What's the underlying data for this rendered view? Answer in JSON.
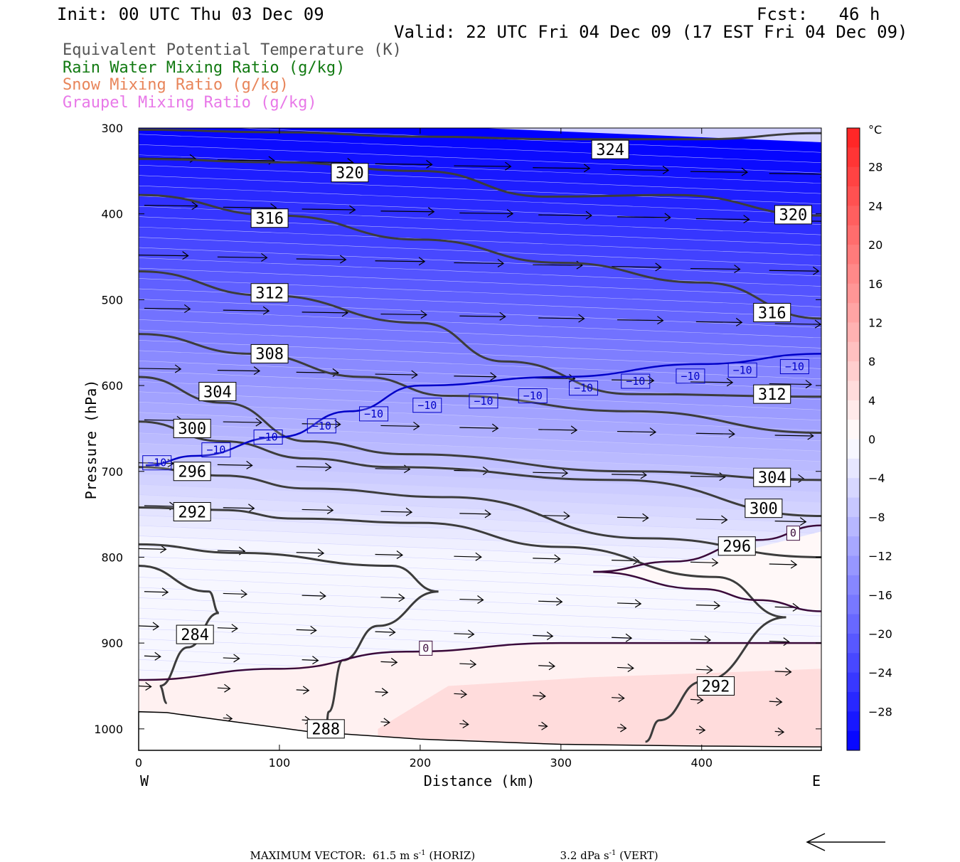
{
  "header": {
    "init": "Init: 00 UTC Thu 03 Dec 09",
    "fcst": "Fcst:   46 h",
    "valid": "Valid: 22 UTC Fri 04 Dec 09 (17 EST Fri 04 Dec 09)"
  },
  "legend": [
    {
      "label": "Equivalent Potential Temperature (K)",
      "color": "#555555"
    },
    {
      "label": "Rain Water Mixing Ratio (g/kg)",
      "color": "#127a12"
    },
    {
      "label": "Snow Mixing Ratio (g/kg)",
      "color": "#e8855a"
    },
    {
      "label": "Graupel Mixing Ratio (g/kg)",
      "color": "#e878e8"
    }
  ],
  "chart_data": {
    "type": "cross-section contour",
    "xlabel": "Distance (km)",
    "ylabel": "Pressure (hPa)",
    "x_ticks": [
      0,
      100,
      200,
      300,
      400
    ],
    "xlim": [
      0,
      485
    ],
    "y_ticks": [
      300,
      400,
      500,
      600,
      700,
      800,
      900,
      1000
    ],
    "ylim": [
      300,
      1025
    ],
    "x_end_labels": {
      "left": "W",
      "right": "E"
    },
    "colorbar": {
      "unit": "°C",
      "ticks": [
        28,
        24,
        20,
        16,
        12,
        8,
        4,
        0,
        -4,
        -8,
        -12,
        -16,
        -20,
        -24,
        -28
      ],
      "range": [
        -32,
        32
      ],
      "low_color": "#0000ff",
      "mid_color": "#ffffff",
      "high_color": "#ff2020"
    },
    "theta_e_contours": [
      {
        "value": 324,
        "label": "324",
        "points": [
          [
            0,
            302
          ],
          [
            100,
            305
          ],
          [
            200,
            310
          ],
          [
            300,
            313
          ],
          [
            400,
            313
          ],
          [
            485,
            306
          ]
        ],
        "label_at": [
          335,
          325
        ]
      },
      {
        "value": 320,
        "label": "320",
        "points": [
          [
            0,
            336
          ],
          [
            100,
            340
          ],
          [
            200,
            350
          ],
          [
            290,
            380
          ],
          [
            380,
            378
          ],
          [
            485,
            402
          ]
        ],
        "label_at": [
          150,
          352
        ],
        "label2_at": [
          465,
          401
        ]
      },
      {
        "value": 316,
        "label": "316",
        "points": [
          [
            0,
            378
          ],
          [
            100,
            402
          ],
          [
            200,
            430
          ],
          [
            300,
            457
          ],
          [
            400,
            480
          ],
          [
            485,
            522
          ]
        ],
        "label_at": [
          93,
          405
        ],
        "label2_at": [
          450,
          515
        ]
      },
      {
        "value": 312,
        "label": "312",
        "points": [
          [
            0,
            467
          ],
          [
            90,
            495
          ],
          [
            200,
            527
          ],
          [
            260,
            572
          ],
          [
            350,
            610
          ],
          [
            485,
            613
          ]
        ],
        "label_at": [
          93,
          492
        ],
        "label2_at": [
          450,
          610
        ]
      },
      {
        "value": 308,
        "label": "308",
        "points": [
          [
            0,
            540
          ],
          [
            80,
            563
          ],
          [
            160,
            590
          ],
          [
            220,
            612
          ],
          [
            350,
            630
          ],
          [
            485,
            655
          ]
        ],
        "label_at": [
          93,
          563
        ]
      },
      {
        "value": 304,
        "label": "304",
        "points": [
          [
            0,
            590
          ],
          [
            60,
            620
          ],
          [
            120,
            665
          ],
          [
            190,
            680
          ],
          [
            350,
            700
          ],
          [
            485,
            710
          ]
        ],
        "label_at": [
          56,
          607
        ],
        "label2_at": [
          450,
          707
        ]
      },
      {
        "value": 300,
        "label": "300",
        "points": [
          [
            0,
            642
          ],
          [
            60,
            665
          ],
          [
            120,
            685
          ],
          [
            180,
            695
          ],
          [
            340,
            710
          ],
          [
            485,
            752
          ]
        ],
        "label_at": [
          38,
          650
        ],
        "label2_at": [
          444,
          743
        ]
      },
      {
        "value": 296,
        "label": "296",
        "points": [
          [
            0,
            695
          ],
          [
            60,
            705
          ],
          [
            120,
            720
          ],
          [
            220,
            730
          ],
          [
            360,
            778
          ],
          [
            485,
            800
          ]
        ],
        "label_at": [
          38,
          700
        ],
        "label2_at": [
          425,
          787
        ]
      },
      {
        "value": 292,
        "label": "292",
        "points": [
          [
            0,
            742
          ],
          [
            60,
            745
          ],
          [
            110,
            755
          ],
          [
            200,
            760
          ],
          [
            300,
            788
          ],
          [
            410,
            823
          ],
          [
            460,
            870
          ],
          [
            400,
            945
          ],
          [
            370,
            990
          ],
          [
            360,
            1015
          ]
        ],
        "label_at": [
          38,
          747
        ],
        "label2_at": [
          410,
          950
        ]
      },
      {
        "value": 288,
        "label": "288",
        "points": [
          [
            0,
            785
          ],
          [
            70,
            795
          ],
          [
            180,
            810
          ],
          [
            213,
            840
          ],
          [
            170,
            880
          ],
          [
            145,
            920
          ],
          [
            135,
            980
          ],
          [
            133,
            1000
          ]
        ],
        "label_at": [
          133,
          1000
        ]
      },
      {
        "value": 284,
        "label": "284",
        "points": [
          [
            0,
            810
          ],
          [
            50,
            840
          ],
          [
            57,
            865
          ],
          [
            35,
            905
          ],
          [
            15,
            950
          ],
          [
            20,
            970
          ]
        ],
        "label_at": [
          40,
          890
        ]
      }
    ],
    "temperature_contours": [
      {
        "value": -10,
        "label": "−10",
        "color": "#0000c8",
        "points": [
          [
            5,
            693
          ],
          [
            40,
            682
          ],
          [
            100,
            660
          ],
          [
            150,
            630
          ],
          [
            200,
            600
          ],
          [
            300,
            590
          ],
          [
            400,
            575
          ],
          [
            485,
            563
          ]
        ]
      },
      {
        "value": 0,
        "label": "0",
        "color": "#3a0a3a",
        "points": [
          [
            0,
            943
          ],
          [
            100,
            930
          ],
          [
            190,
            910
          ],
          [
            300,
            900
          ],
          [
            400,
            900
          ],
          [
            485,
            900
          ]
        ]
      },
      {
        "value": 0,
        "label": "0",
        "color": "#3a0a3a",
        "points": [
          [
            323,
            817
          ],
          [
            380,
            805
          ],
          [
            440,
            780
          ],
          [
            485,
            763
          ]
        ]
      },
      {
        "value": 0,
        "label": "0",
        "color": "#3a0a3a",
        "points": [
          [
            323,
            817
          ],
          [
            400,
            837
          ],
          [
            440,
            850
          ],
          [
            485,
            863
          ]
        ]
      }
    ],
    "temperature_contour_labels": [
      {
        "label": "−10",
        "at": [
          13,
          690
        ]
      },
      {
        "label": "−10",
        "at": [
          55,
          675
        ]
      },
      {
        "label": "−10",
        "at": [
          92,
          660
        ]
      },
      {
        "label": "−10",
        "at": [
          130,
          647
        ]
      },
      {
        "label": "−10",
        "at": [
          167,
          633
        ]
      },
      {
        "label": "−10",
        "at": [
          205,
          623
        ]
      },
      {
        "label": "−10",
        "at": [
          245,
          618
        ]
      },
      {
        "label": "−10",
        "at": [
          280,
          612
        ]
      },
      {
        "label": "−10",
        "at": [
          316,
          603
        ]
      },
      {
        "label": "−10",
        "at": [
          353,
          595
        ]
      },
      {
        "label": "−10",
        "at": [
          392,
          589
        ]
      },
      {
        "label": "−10",
        "at": [
          429,
          582
        ]
      },
      {
        "label": "−10",
        "at": [
          466,
          578
        ]
      },
      {
        "label": "0",
        "at": [
          204,
          906
        ]
      },
      {
        "label": "0",
        "at": [
          465,
          772
        ]
      }
    ],
    "footer": {
      "max_vector_label": "MAXIMUM VECTOR:",
      "horiz": "61.5 m s",
      "horiz_unit": "(HORIZ)",
      "vert": "3.2 dPa s",
      "vert_unit": "(VERT)",
      "exponent": "-1"
    }
  }
}
